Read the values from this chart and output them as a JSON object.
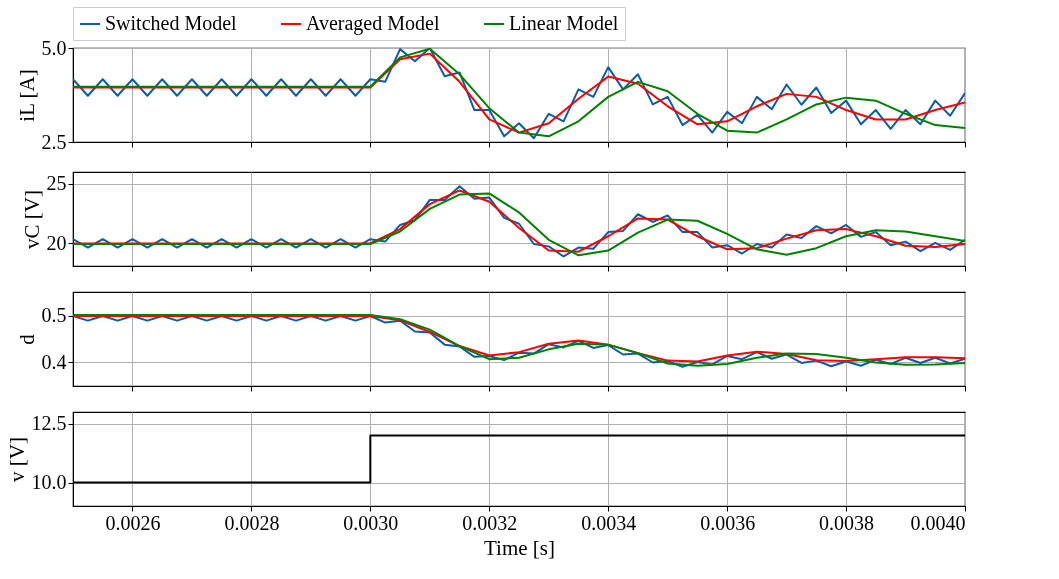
{
  "chart_data": [
    {
      "type": "line",
      "ylabel": "iL [A]",
      "xlim": [
        0.0025,
        0.004
      ],
      "ylim": [
        2.5,
        5.0
      ],
      "xticks": [
        0.0026,
        0.0028,
        0.003,
        0.0032,
        0.0034,
        0.0036,
        0.0038,
        0.004
      ],
      "yticks": [
        2.5,
        {
          "value": 5,
          "label": "5.0"
        }
      ],
      "grid": true,
      "legend": "top",
      "tick_labels": "y",
      "series": [
        {
          "name": "Switched Model",
          "color": "#0c5da5",
          "x": [
            0.0025,
            0.002525,
            0.00255,
            0.002575,
            0.0026,
            0.002625,
            0.00265,
            0.002675,
            0.0027,
            0.002725,
            0.00275,
            0.002775,
            0.0028,
            0.002825,
            0.00285,
            0.002875,
            0.0029,
            0.002925,
            0.00295,
            0.002975,
            0.003,
            0.003025,
            0.00305,
            0.003075,
            0.0031,
            0.003125,
            0.00315,
            0.003175,
            0.0032,
            0.003225,
            0.00325,
            0.003275,
            0.0033,
            0.003325,
            0.00335,
            0.003375,
            0.0034,
            0.003425,
            0.00345,
            0.003475,
            0.0035,
            0.003525,
            0.00355,
            0.003575,
            0.0036,
            0.003625,
            0.00365,
            0.003675,
            0.0037,
            0.003725,
            0.00375,
            0.003775,
            0.0038,
            0.003825,
            0.00385,
            0.003875,
            0.0039,
            0.003925,
            0.00395,
            0.003975,
            0.004
          ],
          "values": [
            4.17,
            3.73,
            4.17,
            3.73,
            4.17,
            3.73,
            4.17,
            3.73,
            4.17,
            3.73,
            4.17,
            3.73,
            4.17,
            3.73,
            4.17,
            3.73,
            4.17,
            3.73,
            4.17,
            3.73,
            4.17,
            4.1,
            4.97,
            4.65,
            5.0,
            4.25,
            4.35,
            3.35,
            3.35,
            2.65,
            3.0,
            2.6,
            3.25,
            3.05,
            3.9,
            3.7,
            4.49,
            3.9,
            4.3,
            3.5,
            3.7,
            2.95,
            3.22,
            2.75,
            3.3,
            3.0,
            3.7,
            3.37,
            4.03,
            3.49,
            3.95,
            3.27,
            3.6,
            2.97,
            3.35,
            2.85,
            3.35,
            2.97,
            3.6,
            3.2,
            3.8
          ]
        },
        {
          "name": "Averaged Model",
          "color": "#ff0000",
          "x": [
            0.0025,
            0.003,
            0.00305,
            0.0031,
            0.00315,
            0.0032,
            0.00325,
            0.0033,
            0.00335,
            0.0034,
            0.00345,
            0.0035,
            0.00355,
            0.0036,
            0.00365,
            0.0037,
            0.00375,
            0.0038,
            0.00385,
            0.0039,
            0.00395,
            0.004
          ],
          "values": [
            3.95,
            3.95,
            4.7,
            4.85,
            4.1,
            3.1,
            2.75,
            3.0,
            3.65,
            4.24,
            4.05,
            3.45,
            2.97,
            3.05,
            3.45,
            3.78,
            3.7,
            3.35,
            3.1,
            3.1,
            3.35,
            3.55
          ]
        },
        {
          "name": "Linear Model",
          "color": "#008000",
          "x": [
            0.0025,
            0.003,
            0.00305,
            0.0031,
            0.00315,
            0.0032,
            0.00325,
            0.0033,
            0.00335,
            0.0034,
            0.00345,
            0.0035,
            0.00355,
            0.0036,
            0.00365,
            0.0037,
            0.00375,
            0.0038,
            0.00385,
            0.0039,
            0.00395,
            0.004
          ],
          "values": [
            3.97,
            3.97,
            4.75,
            4.98,
            4.3,
            3.4,
            2.75,
            2.65,
            3.05,
            3.7,
            4.1,
            3.85,
            3.25,
            2.8,
            2.75,
            3.1,
            3.5,
            3.68,
            3.6,
            3.25,
            2.95,
            2.87
          ]
        }
      ]
    },
    {
      "type": "line",
      "ylabel": "vC [V]",
      "xlim": [
        0.0025,
        0.004
      ],
      "ylim": [
        18.1,
        26.0
      ],
      "xticks": [
        0.0026,
        0.0028,
        0.003,
        0.0032,
        0.0034,
        0.0036,
        0.0038,
        0.004
      ],
      "yticks": [
        20,
        25
      ],
      "grid": true,
      "tick_labels": "y",
      "series": [
        {
          "color": "#0c5da5",
          "x": [
            0.0025,
            0.002525,
            0.00255,
            0.002575,
            0.0026,
            0.002625,
            0.00265,
            0.002675,
            0.0027,
            0.002725,
            0.00275,
            0.002775,
            0.0028,
            0.002825,
            0.00285,
            0.002875,
            0.0029,
            0.002925,
            0.00295,
            0.002975,
            0.003,
            0.003025,
            0.00305,
            0.003075,
            0.0031,
            0.003125,
            0.00315,
            0.003175,
            0.0032,
            0.003225,
            0.00325,
            0.003275,
            0.0033,
            0.003325,
            0.00335,
            0.003375,
            0.0034,
            0.003425,
            0.00345,
            0.003475,
            0.0035,
            0.003525,
            0.00355,
            0.003575,
            0.0036,
            0.003625,
            0.00365,
            0.003675,
            0.0037,
            0.003725,
            0.00375,
            0.003775,
            0.0038,
            0.003825,
            0.00385,
            0.003875,
            0.0039,
            0.003925,
            0.00395,
            0.003975,
            0.004
          ],
          "values": [
            20.35,
            19.65,
            20.35,
            19.65,
            20.35,
            19.65,
            20.35,
            19.65,
            20.35,
            19.65,
            20.35,
            19.65,
            20.35,
            19.65,
            20.35,
            19.65,
            20.35,
            19.65,
            20.35,
            19.65,
            20.35,
            20.15,
            21.55,
            21.95,
            23.65,
            23.65,
            24.8,
            23.75,
            23.85,
            22.15,
            21.65,
            19.95,
            19.75,
            18.9,
            19.65,
            19.55,
            20.95,
            21.05,
            22.45,
            21.8,
            22.35,
            20.95,
            20.95,
            19.65,
            19.85,
            19.15,
            19.95,
            19.65,
            20.75,
            20.45,
            21.45,
            20.85,
            21.55,
            20.55,
            20.95,
            19.85,
            20.15,
            19.35,
            20.05,
            19.45,
            20.3
          ]
        },
        {
          "color": "#ff0000",
          "x": [
            0.0025,
            0.003,
            0.00305,
            0.0031,
            0.00315,
            0.0032,
            0.00325,
            0.0033,
            0.00335,
            0.0034,
            0.00345,
            0.0035,
            0.00355,
            0.0036,
            0.00365,
            0.0037,
            0.00375,
            0.0038,
            0.00385,
            0.0039,
            0.00395,
            0.004
          ],
          "values": [
            20.0,
            20.0,
            21.2,
            23.3,
            24.45,
            23.5,
            21.3,
            19.4,
            19.3,
            20.6,
            22.1,
            22.0,
            20.6,
            19.5,
            19.6,
            20.4,
            21.1,
            21.2,
            20.6,
            19.8,
            19.7,
            19.95
          ]
        },
        {
          "color": "#008000",
          "x": [
            0.0025,
            0.003,
            0.00305,
            0.0031,
            0.00315,
            0.0032,
            0.00325,
            0.0033,
            0.00335,
            0.0034,
            0.00345,
            0.0035,
            0.00355,
            0.0036,
            0.00365,
            0.0037,
            0.00375,
            0.0038,
            0.00385,
            0.0039,
            0.00395,
            0.004
          ],
          "values": [
            19.95,
            19.95,
            21.0,
            22.9,
            24.1,
            24.2,
            22.6,
            20.3,
            19.0,
            19.4,
            20.9,
            22.0,
            21.9,
            20.8,
            19.5,
            19.05,
            19.6,
            20.6,
            21.1,
            21.0,
            20.6,
            20.2
          ]
        }
      ]
    },
    {
      "type": "line",
      "ylabel": "d",
      "xlim": [
        0.0025,
        0.004
      ],
      "ylim": [
        0.35,
        0.55
      ],
      "xticks": [
        0.0026,
        0.0028,
        0.003,
        0.0032,
        0.0034,
        0.0036,
        0.0038,
        0.004
      ],
      "yticks": [
        0.4,
        0.5
      ],
      "grid": true,
      "tick_labels": "y",
      "series": [
        {
          "color": "#0c5da5",
          "x": [
            0.0025,
            0.002525,
            0.00255,
            0.002575,
            0.0026,
            0.002625,
            0.00265,
            0.002675,
            0.0027,
            0.002725,
            0.00275,
            0.002775,
            0.0028,
            0.002825,
            0.00285,
            0.002875,
            0.0029,
            0.002925,
            0.00295,
            0.002975,
            0.003,
            0.003025,
            0.00305,
            0.003075,
            0.0031,
            0.003125,
            0.00315,
            0.003175,
            0.0032,
            0.003225,
            0.00325,
            0.003275,
            0.0033,
            0.003325,
            0.00335,
            0.003375,
            0.0034,
            0.003425,
            0.00345,
            0.003475,
            0.0035,
            0.003525,
            0.00355,
            0.003575,
            0.0036,
            0.003625,
            0.00365,
            0.003675,
            0.0037,
            0.003725,
            0.00375,
            0.003775,
            0.0038,
            0.003825,
            0.00385,
            0.003875,
            0.0039,
            0.003925,
            0.00395,
            0.003975,
            0.004
          ],
          "values": [
            0.499,
            0.489,
            0.499,
            0.489,
            0.499,
            0.489,
            0.499,
            0.489,
            0.499,
            0.489,
            0.499,
            0.489,
            0.499,
            0.489,
            0.499,
            0.489,
            0.499,
            0.489,
            0.499,
            0.489,
            0.499,
            0.485,
            0.489,
            0.466,
            0.464,
            0.438,
            0.434,
            0.412,
            0.414,
            0.405,
            0.421,
            0.419,
            0.439,
            0.432,
            0.446,
            0.431,
            0.437,
            0.417,
            0.419,
            0.4,
            0.403,
            0.391,
            0.401,
            0.396,
            0.414,
            0.407,
            0.422,
            0.408,
            0.417,
            0.399,
            0.404,
            0.392,
            0.402,
            0.393,
            0.406,
            0.397,
            0.41,
            0.399,
            0.41,
            0.398,
            0.408
          ]
        },
        {
          "color": "#ff0000",
          "x": [
            0.0025,
            0.003,
            0.00305,
            0.0031,
            0.00315,
            0.0032,
            0.00325,
            0.0033,
            0.00335,
            0.0034,
            0.00345,
            0.0035,
            0.00355,
            0.0036,
            0.00365,
            0.0037,
            0.00375,
            0.0038,
            0.00385,
            0.0039,
            0.00395,
            0.004
          ],
          "values": [
            0.499,
            0.499,
            0.49,
            0.465,
            0.435,
            0.415,
            0.422,
            0.44,
            0.447,
            0.438,
            0.42,
            0.404,
            0.402,
            0.415,
            0.423,
            0.418,
            0.405,
            0.403,
            0.407,
            0.411,
            0.411,
            0.409
          ]
        },
        {
          "color": "#008000",
          "x": [
            0.0025,
            0.003,
            0.00305,
            0.0031,
            0.00315,
            0.0032,
            0.00325,
            0.0033,
            0.00335,
            0.0034,
            0.00345,
            0.0035,
            0.00355,
            0.0036,
            0.00365,
            0.0037,
            0.00375,
            0.0038,
            0.00385,
            0.0039,
            0.00395,
            0.004
          ],
          "values": [
            0.501,
            0.501,
            0.492,
            0.47,
            0.435,
            0.407,
            0.41,
            0.428,
            0.44,
            0.438,
            0.42,
            0.398,
            0.393,
            0.397,
            0.41,
            0.419,
            0.418,
            0.41,
            0.4,
            0.395,
            0.396,
            0.399
          ]
        }
      ]
    },
    {
      "type": "step",
      "ylabel": "v [V]",
      "xlabel": "Time [s]",
      "xlim": [
        0.0025,
        0.004
      ],
      "ylim": [
        9.0,
        13.0
      ],
      "xticks": [
        0.0026,
        0.0028,
        {
          "value": 0.003,
          "label": "0.0030"
        },
        0.0032,
        0.0034,
        0.0036,
        0.0038,
        {
          "value": 0.004,
          "label": "0.0040"
        }
      ],
      "yticks": [
        {
          "value": 10,
          "label": "10.0"
        },
        12.5
      ],
      "grid": true,
      "x": [
        0.0025,
        0.003,
        0.004
      ],
      "values": [
        10,
        12,
        12
      ],
      "color": "#000000"
    }
  ]
}
